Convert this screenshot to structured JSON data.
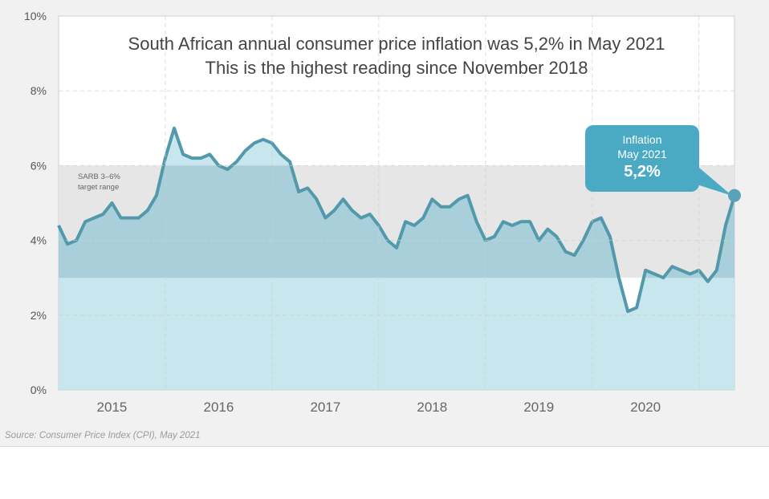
{
  "chart_data": {
    "type": "area",
    "title": "South African annual consumer price inflation was 5,2% in May 2021",
    "subtitle": "This is the highest reading since November 2018",
    "xlabel": "",
    "ylabel": "",
    "ylim": [
      0,
      10
    ],
    "yticks": [
      "0%",
      "2%",
      "4%",
      "6%",
      "8%",
      "10%"
    ],
    "ytick_values": [
      0,
      2,
      4,
      6,
      8,
      10
    ],
    "xtick_labels": [
      "2015",
      "2016",
      "2017",
      "2018",
      "2019",
      "2020"
    ],
    "grid": true,
    "x_start": "Jan 2015",
    "x_end": "May 2021",
    "frequency": "monthly",
    "series": [
      {
        "name": "CPI annual inflation (%)",
        "color": "#5199ab",
        "fill": "#bde2ea",
        "values": [
          4.4,
          3.9,
          4.0,
          4.5,
          4.6,
          4.7,
          5.0,
          4.6,
          4.6,
          4.6,
          4.8,
          5.2,
          6.2,
          7.0,
          6.3,
          6.2,
          6.2,
          6.3,
          6.0,
          5.9,
          6.1,
          6.4,
          6.6,
          6.7,
          6.6,
          6.3,
          6.1,
          5.3,
          5.4,
          5.1,
          4.6,
          4.8,
          5.1,
          4.8,
          4.6,
          4.7,
          4.4,
          4.0,
          3.8,
          4.5,
          4.4,
          4.6,
          5.1,
          4.9,
          4.9,
          5.1,
          5.2,
          4.5,
          4.0,
          4.1,
          4.5,
          4.4,
          4.5,
          4.5,
          4.0,
          4.3,
          4.1,
          3.7,
          3.6,
          4.0,
          4.5,
          4.6,
          4.1,
          3.0,
          2.1,
          2.2,
          3.2,
          3.1,
          3.0,
          3.3,
          3.2,
          3.1,
          3.2,
          2.9,
          3.2,
          4.4,
          5.2
        ]
      }
    ],
    "target_band": {
      "label_line1": "SARB 3–6%",
      "label_line2": "target range",
      "low": 3,
      "high": 6,
      "color": "#e6e6e6"
    },
    "annotation": {
      "line1": "Inflation",
      "line2": "May 2021",
      "value": "5,2%",
      "point_value": 5.2,
      "color": "#4aaac4"
    }
  },
  "source": "Source: Consumer Price Index (CPI), May 2021"
}
